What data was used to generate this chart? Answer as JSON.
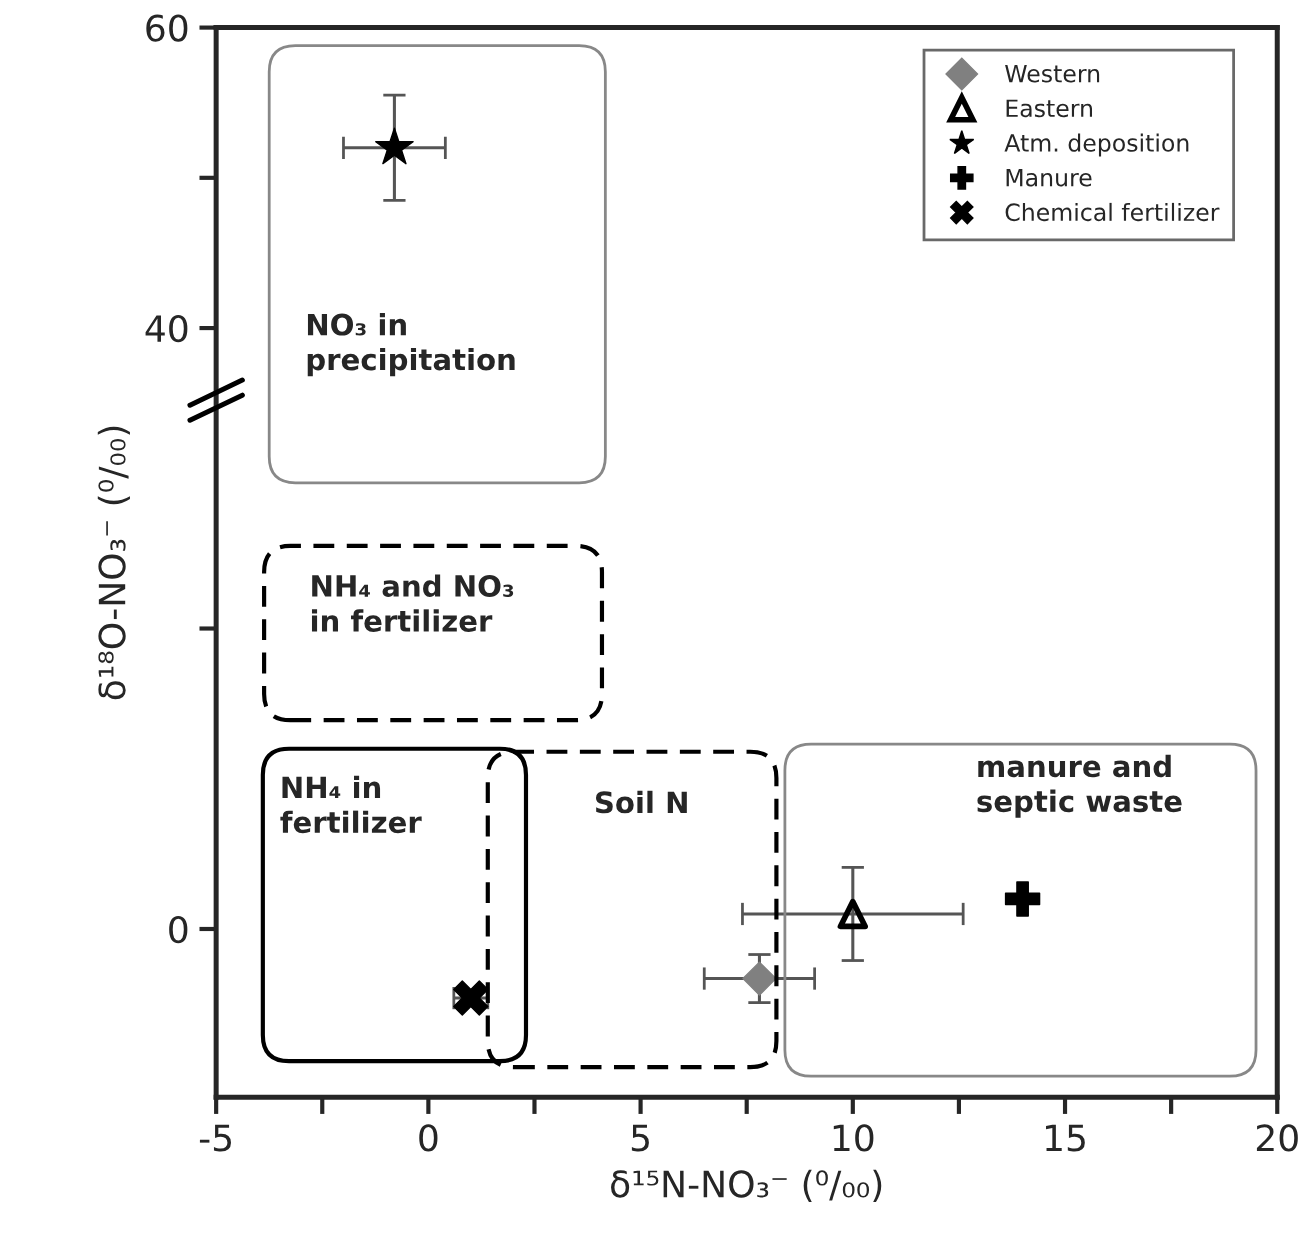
{
  "chart_data": {
    "type": "scatter",
    "xlabel": "δ¹⁵N-NO₃⁻ (⁰/₀₀)",
    "ylabel": "δ¹⁸O-NO₃⁻ (⁰/₀₀)",
    "xlim": [
      -5,
      20
    ],
    "ylim": [
      -11.2,
      60
    ],
    "xticks": [
      -5,
      {
        "value": -2.5,
        "label": null
      },
      0,
      {
        "value": 2.5,
        "label": null
      },
      5,
      {
        "value": 7.5,
        "label": null
      },
      10,
      {
        "value": 12.5,
        "label": null
      },
      15,
      {
        "value": 17.5,
        "label": null
      },
      20
    ],
    "yticks": [
      0,
      {
        "value": 20,
        "label": null
      },
      40,
      {
        "value": 50,
        "label": null
      },
      60
    ],
    "grid": false,
    "legend": "top right",
    "series": [
      {
        "name": "Western",
        "color": "#808080",
        "marker": "diamond",
        "x": [
          7.8
        ],
        "values": [
          -3.3
        ],
        "errors": [
          1.6
        ],
        "xerrors": [
          1.3
        ]
      },
      {
        "name": "Eastern",
        "color": "#000000",
        "marker": "triangle",
        "x": [
          10.0
        ],
        "values": [
          1.0
        ],
        "errors": [
          3.1
        ],
        "xerrors": [
          2.6
        ]
      },
      {
        "name": "Atm. deposition",
        "color": "#000000",
        "marker": "star",
        "x": [
          -0.8
        ],
        "values": [
          52.0
        ],
        "errors": [
          3.5
        ],
        "xerrors": [
          1.2
        ]
      },
      {
        "name": "Manure",
        "color": "#000000",
        "marker": "plus",
        "x": [
          14.0
        ],
        "values": [
          2.0
        ]
      },
      {
        "name": "Chemical fertilizer",
        "color": "#000000",
        "marker": "cross",
        "x": [
          1.0
        ],
        "values": [
          -4.6
        ],
        "xerrors": [
          0.4
        ]
      }
    ],
    "annotations": [
      "NO₃ in\nprecipitation",
      "NH₄ and NO₃\nin fertilizer",
      "NH₄ in\nfertilizer",
      "Soil N",
      "manure and\nseptic waste"
    ]
  }
}
